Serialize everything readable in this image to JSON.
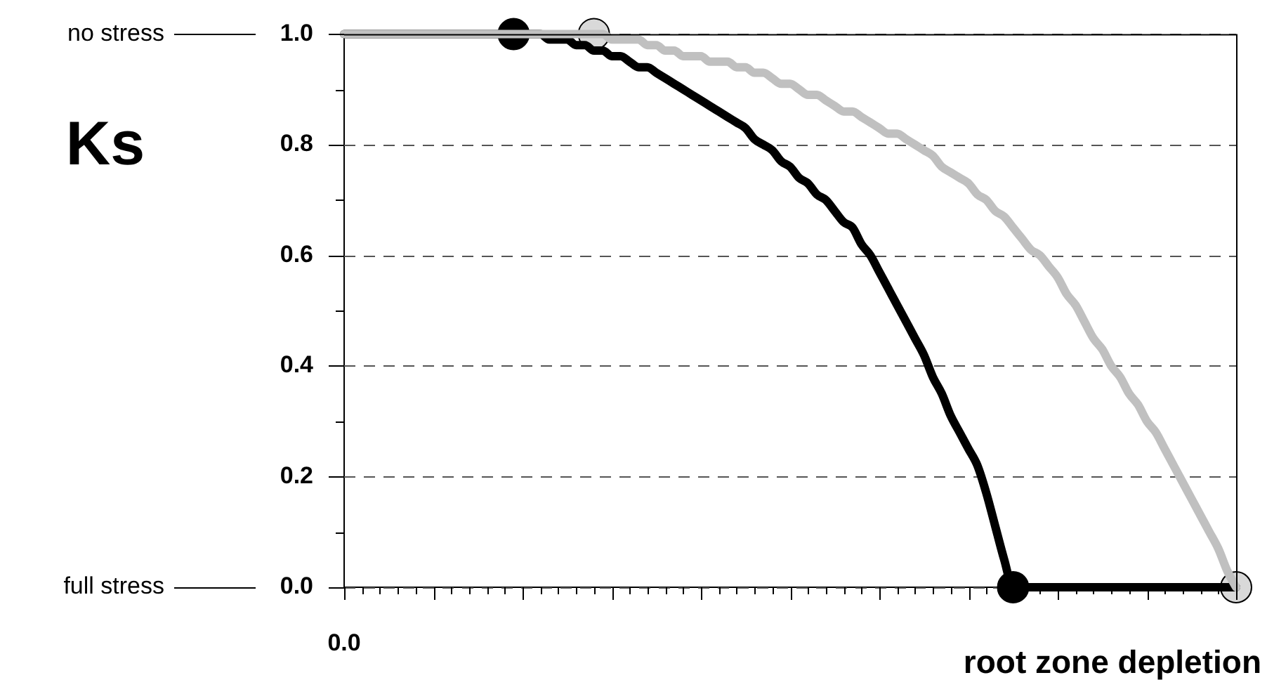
{
  "chart_data": {
    "type": "line",
    "xlabel": "root zone depletion",
    "ylabel": "Ks",
    "categories": [
      "0.0",
      null,
      null,
      null,
      null,
      null,
      null,
      null,
      null,
      null,
      null,
      null,
      null,
      null,
      null,
      null,
      null,
      null,
      null,
      null,
      null,
      null,
      null,
      null,
      null,
      null,
      null,
      null,
      null,
      null,
      null,
      null,
      null,
      null,
      null,
      null,
      null,
      null,
      null,
      null,
      null,
      null,
      null,
      null,
      null,
      null,
      null,
      null,
      null,
      null,
      null,
      null,
      null,
      null,
      null,
      null,
      null,
      null,
      null,
      null,
      null,
      null,
      null,
      null,
      null,
      null,
      null,
      null,
      null,
      null,
      null,
      null,
      null,
      null,
      null,
      null,
      null,
      null,
      null,
      null,
      null,
      null,
      null,
      null,
      null,
      null,
      null,
      null,
      null,
      null,
      null,
      null,
      null,
      null,
      null,
      null,
      null,
      null,
      null,
      null,
      null
    ],
    "series": [
      {
        "type": "line",
        "marker": "none",
        "color": "#c0c0c0",
        "values": [
          1,
          1,
          1,
          1,
          1,
          1,
          1,
          1,
          1,
          1,
          1,
          1,
          1,
          1,
          1,
          1,
          1,
          1,
          1,
          1,
          1,
          1,
          1,
          1,
          1,
          1,
          1,
          1,
          1.0,
          1.0,
          0.99,
          0.99,
          0.99,
          0.99,
          0.98,
          0.98,
          0.97,
          0.97,
          0.96,
          0.96,
          0.96,
          0.95,
          0.95,
          0.95,
          0.94,
          0.94,
          0.93,
          0.93,
          0.92,
          0.91,
          0.91,
          0.9,
          0.89,
          0.89,
          0.88,
          0.87,
          0.86,
          0.86,
          0.85,
          0.84,
          0.83,
          0.82,
          0.82,
          0.81,
          0.8,
          0.79,
          0.78,
          0.76,
          0.75,
          0.74,
          0.73,
          0.71,
          0.7,
          0.68,
          0.67,
          0.65,
          0.63,
          0.61,
          0.6,
          0.58,
          0.56,
          0.53,
          0.51,
          0.48,
          0.45,
          0.43,
          0.4,
          0.38,
          0.35,
          0.33,
          0.3,
          0.28,
          0.25,
          0.22,
          0.19,
          0.16,
          0.13,
          0.1,
          0.07,
          0.03,
          0.0
        ]
      },
      {
        "type": "line",
        "marker": "none",
        "color": "#000000",
        "values": [
          1,
          1,
          1,
          1,
          1,
          1,
          1,
          1,
          1,
          1,
          1,
          1,
          1,
          1,
          1,
          1,
          1,
          1,
          1,
          1.0,
          1.0,
          1.0,
          1.0,
          0.99,
          0.99,
          0.99,
          0.98,
          0.98,
          0.97,
          0.97,
          0.96,
          0.96,
          0.95,
          0.94,
          0.94,
          0.93,
          0.92,
          0.91,
          0.9,
          0.89,
          0.88,
          0.87,
          0.86,
          0.85,
          0.84,
          0.83,
          0.81,
          0.8,
          0.79,
          0.77,
          0.76,
          0.74,
          0.73,
          0.71,
          0.7,
          0.68,
          0.66,
          0.65,
          0.62,
          0.6,
          0.57,
          0.54,
          0.51,
          0.48,
          0.45,
          0.42,
          0.38,
          0.35,
          0.31,
          0.28,
          0.25,
          0.22,
          0.17,
          0.11,
          0.05,
          0,
          0,
          0,
          0,
          0,
          0,
          0,
          0,
          0,
          0,
          0,
          0,
          0,
          0,
          0,
          0,
          0,
          0,
          0,
          0,
          0,
          0,
          0,
          0,
          0,
          0
        ]
      },
      {
        "type": "scatter",
        "marker": "circle",
        "color": "#000000",
        "values": [
          null,
          null,
          null,
          null,
          null,
          null,
          null,
          null,
          null,
          null,
          null,
          null,
          null,
          null,
          null,
          null,
          null,
          null,
          null,
          1,
          null,
          null,
          null,
          null,
          null,
          null,
          null,
          null,
          null,
          null,
          null,
          null,
          null,
          null,
          null,
          null,
          null,
          null,
          null,
          null,
          null,
          null,
          null,
          null,
          null,
          null,
          null,
          null,
          null,
          null,
          null,
          null,
          null,
          null,
          null,
          null,
          null,
          null,
          null,
          null,
          null,
          null,
          null,
          null,
          null,
          null,
          null,
          null,
          null,
          null,
          null,
          null,
          null,
          null,
          null,
          0,
          null,
          null,
          null,
          null,
          null,
          null,
          null,
          null,
          null,
          null,
          null,
          null,
          null,
          null,
          null,
          null,
          null,
          null,
          null,
          null,
          null,
          null,
          null,
          null,
          null
        ]
      },
      {
        "type": "scatter",
        "marker": "circle",
        "color": "#d9d9d9",
        "values": [
          null,
          null,
          null,
          null,
          null,
          null,
          null,
          null,
          null,
          null,
          null,
          null,
          null,
          null,
          null,
          null,
          null,
          null,
          null,
          null,
          null,
          null,
          null,
          null,
          null,
          null,
          null,
          null,
          1,
          null,
          null,
          null,
          null,
          null,
          null,
          null,
          null,
          null,
          null,
          null,
          null,
          null,
          null,
          null,
          null,
          null,
          null,
          null,
          null,
          null,
          null,
          null,
          null,
          null,
          null,
          null,
          null,
          null,
          null,
          null,
          null,
          null,
          null,
          null,
          null,
          null,
          null,
          null,
          null,
          null,
          null,
          null,
          null,
          null,
          null,
          null,
          null,
          null,
          null,
          null,
          null,
          null,
          null,
          null,
          null,
          null,
          null,
          null,
          null,
          null,
          null,
          null,
          null,
          null,
          null,
          null,
          null,
          null,
          null,
          null,
          0
        ]
      }
    ],
    "ylim": [
      0,
      1
    ],
    "yticks": [
      {
        "value": 0,
        "label": "0.0"
      },
      {
        "value": 0.1,
        "label": null
      },
      0.2,
      {
        "value": 0.3,
        "label": null
      },
      0.4,
      {
        "value": 0.5,
        "label": null
      },
      0.6,
      {
        "value": 0.7,
        "label": null
      },
      0.8,
      {
        "value": 0.9,
        "label": null
      },
      {
        "value": 1,
        "label": "1.0"
      }
    ],
    "grid": "y",
    "legend": false,
    "annotations": [
      "no stress",
      "full stress"
    ]
  }
}
